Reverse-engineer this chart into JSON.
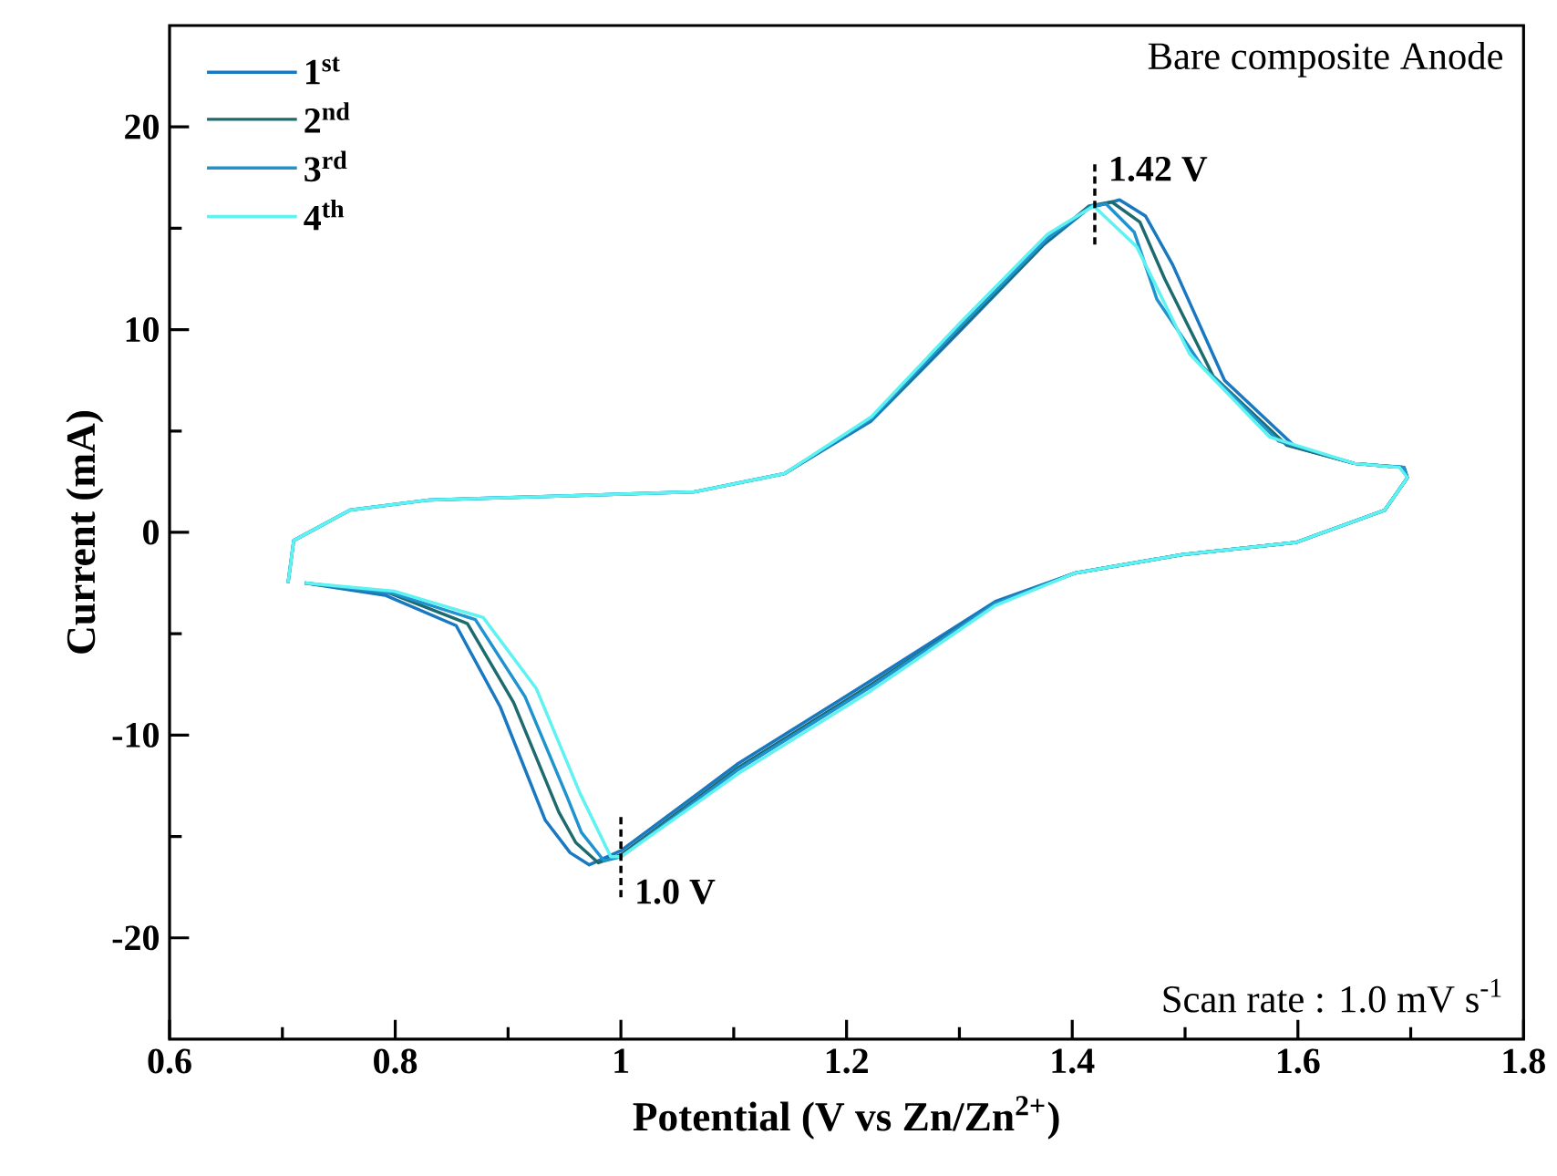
{
  "chart_data": {
    "type": "line",
    "xlabel": "Potential (V vs Zn/Zn$^{2+}$)",
    "ylabel": "Current (mA)",
    "xlim": [
      0.6,
      1.8
    ],
    "xticks": [
      0.6,
      0.8,
      1,
      1.2,
      1.4,
      1.6,
      1.8
    ],
    "ylim": [
      -25,
      25
    ],
    "yticks": [
      -20,
      -10,
      0,
      10,
      20
    ],
    "legend": "top left",
    "marker": "none",
    "line_style": "solid",
    "grid": false,
    "annotations": [
      "Bare composite Anode",
      "Scan rate : 1.0 mV s$^{-1}$",
      {
        "text": "1.42 V",
        "x": 1.42,
        "y": 16.2
      },
      {
        "text": "1.0 V",
        "x": 1.0,
        "y": -16.0
      }
    ],
    "series": [
      {
        "name": "1$^{st}$",
        "color": "#1878c2",
        "x": [
          0.705,
          0.71,
          0.76,
          0.83,
          0.95,
          1.065,
          1.145,
          1.222,
          1.3,
          1.375,
          1.415,
          1.442,
          1.465,
          1.489,
          1.535,
          1.598,
          1.65,
          1.694,
          1.697,
          1.677,
          1.598,
          1.497,
          1.403,
          1.332,
          1.222,
          1.104,
          1.0,
          0.972,
          0.955,
          0.933,
          0.893,
          0.854,
          0.791,
          0.72
        ],
        "values": [
          -2.5,
          -0.4,
          1.1,
          1.6,
          1.8,
          2.0,
          2.9,
          5.5,
          9.9,
          14.2,
          16.0,
          16.4,
          15.6,
          13.2,
          7.5,
          4.2,
          3.4,
          3.2,
          2.7,
          1.1,
          -0.5,
          -1.1,
          -2.0,
          -3.4,
          -7.3,
          -11.4,
          -15.7,
          -16.4,
          -15.8,
          -14.2,
          -8.6,
          -4.6,
          -3.1,
          -2.5
        ]
      },
      {
        "name": "2$^{nd}$",
        "color": "#1d6b6e",
        "x": [
          1.145,
          1.222,
          1.3,
          1.378,
          1.415,
          1.435,
          1.46,
          1.482,
          1.525,
          1.59,
          1.65,
          1.694,
          1.697,
          1.677,
          1.598,
          1.497,
          1.403,
          1.332,
          1.222,
          1.104,
          1.0,
          0.98,
          0.96,
          0.945,
          0.905,
          0.864,
          0.795,
          0.72
        ],
        "values": [
          2.9,
          5.6,
          10.0,
          14.4,
          16.1,
          16.3,
          15.3,
          12.5,
          7.7,
          4.3,
          3.4,
          3.2,
          2.7,
          1.1,
          -0.5,
          -1.1,
          -2.0,
          -3.5,
          -7.5,
          -11.6,
          -15.9,
          -16.3,
          -15.3,
          -13.8,
          -8.4,
          -4.5,
          -3.0,
          -2.5
        ]
      },
      {
        "name": "3$^{rd}$",
        "color": "#1f92d0",
        "x": [
          0.705,
          0.71,
          0.76,
          0.83,
          0.95,
          1.065,
          1.145,
          1.222,
          1.3,
          1.378,
          1.417,
          1.43,
          1.455,
          1.475,
          1.515,
          1.583,
          1.65,
          1.694,
          1.697,
          1.677,
          1.598,
          1.497,
          1.403,
          1.332,
          1.222,
          1.104,
          1.0,
          0.985,
          0.965,
          0.952,
          0.915,
          0.871,
          0.797,
          0.72
        ],
        "values": [
          -2.5,
          -0.4,
          1.1,
          1.6,
          1.8,
          2.0,
          2.9,
          5.6,
          10.1,
          14.5,
          16.1,
          16.2,
          14.8,
          11.5,
          8.2,
          4.5,
          3.4,
          3.2,
          2.7,
          1.1,
          -0.5,
          -1.1,
          -2.0,
          -3.5,
          -7.6,
          -11.7,
          -16.0,
          -16.2,
          -14.8,
          -13.0,
          -8.1,
          -4.3,
          -3.0,
          -2.5
        ]
      },
      {
        "name": "4$^{th}$",
        "color": "#5ef2f0",
        "x": [
          0.705,
          0.71,
          0.76,
          0.83,
          0.95,
          1.065,
          1.145,
          1.222,
          1.3,
          1.378,
          1.419,
          1.457,
          1.504,
          1.575,
          1.65,
          1.69,
          1.697,
          1.677,
          1.598,
          1.497,
          1.403,
          1.332,
          1.222,
          1.104,
          1.0,
          0.991,
          0.964,
          0.925,
          0.878,
          0.799,
          0.72
        ],
        "values": [
          -2.5,
          -0.4,
          1.1,
          1.6,
          1.8,
          2.0,
          2.9,
          5.7,
          10.3,
          14.7,
          16.1,
          14.1,
          8.8,
          4.7,
          3.4,
          3.2,
          2.7,
          1.1,
          -0.5,
          -1.1,
          -2.0,
          -3.6,
          -7.8,
          -11.9,
          -16.0,
          -16.0,
          -12.9,
          -7.7,
          -4.2,
          -2.9,
          -2.5
        ]
      }
    ]
  }
}
